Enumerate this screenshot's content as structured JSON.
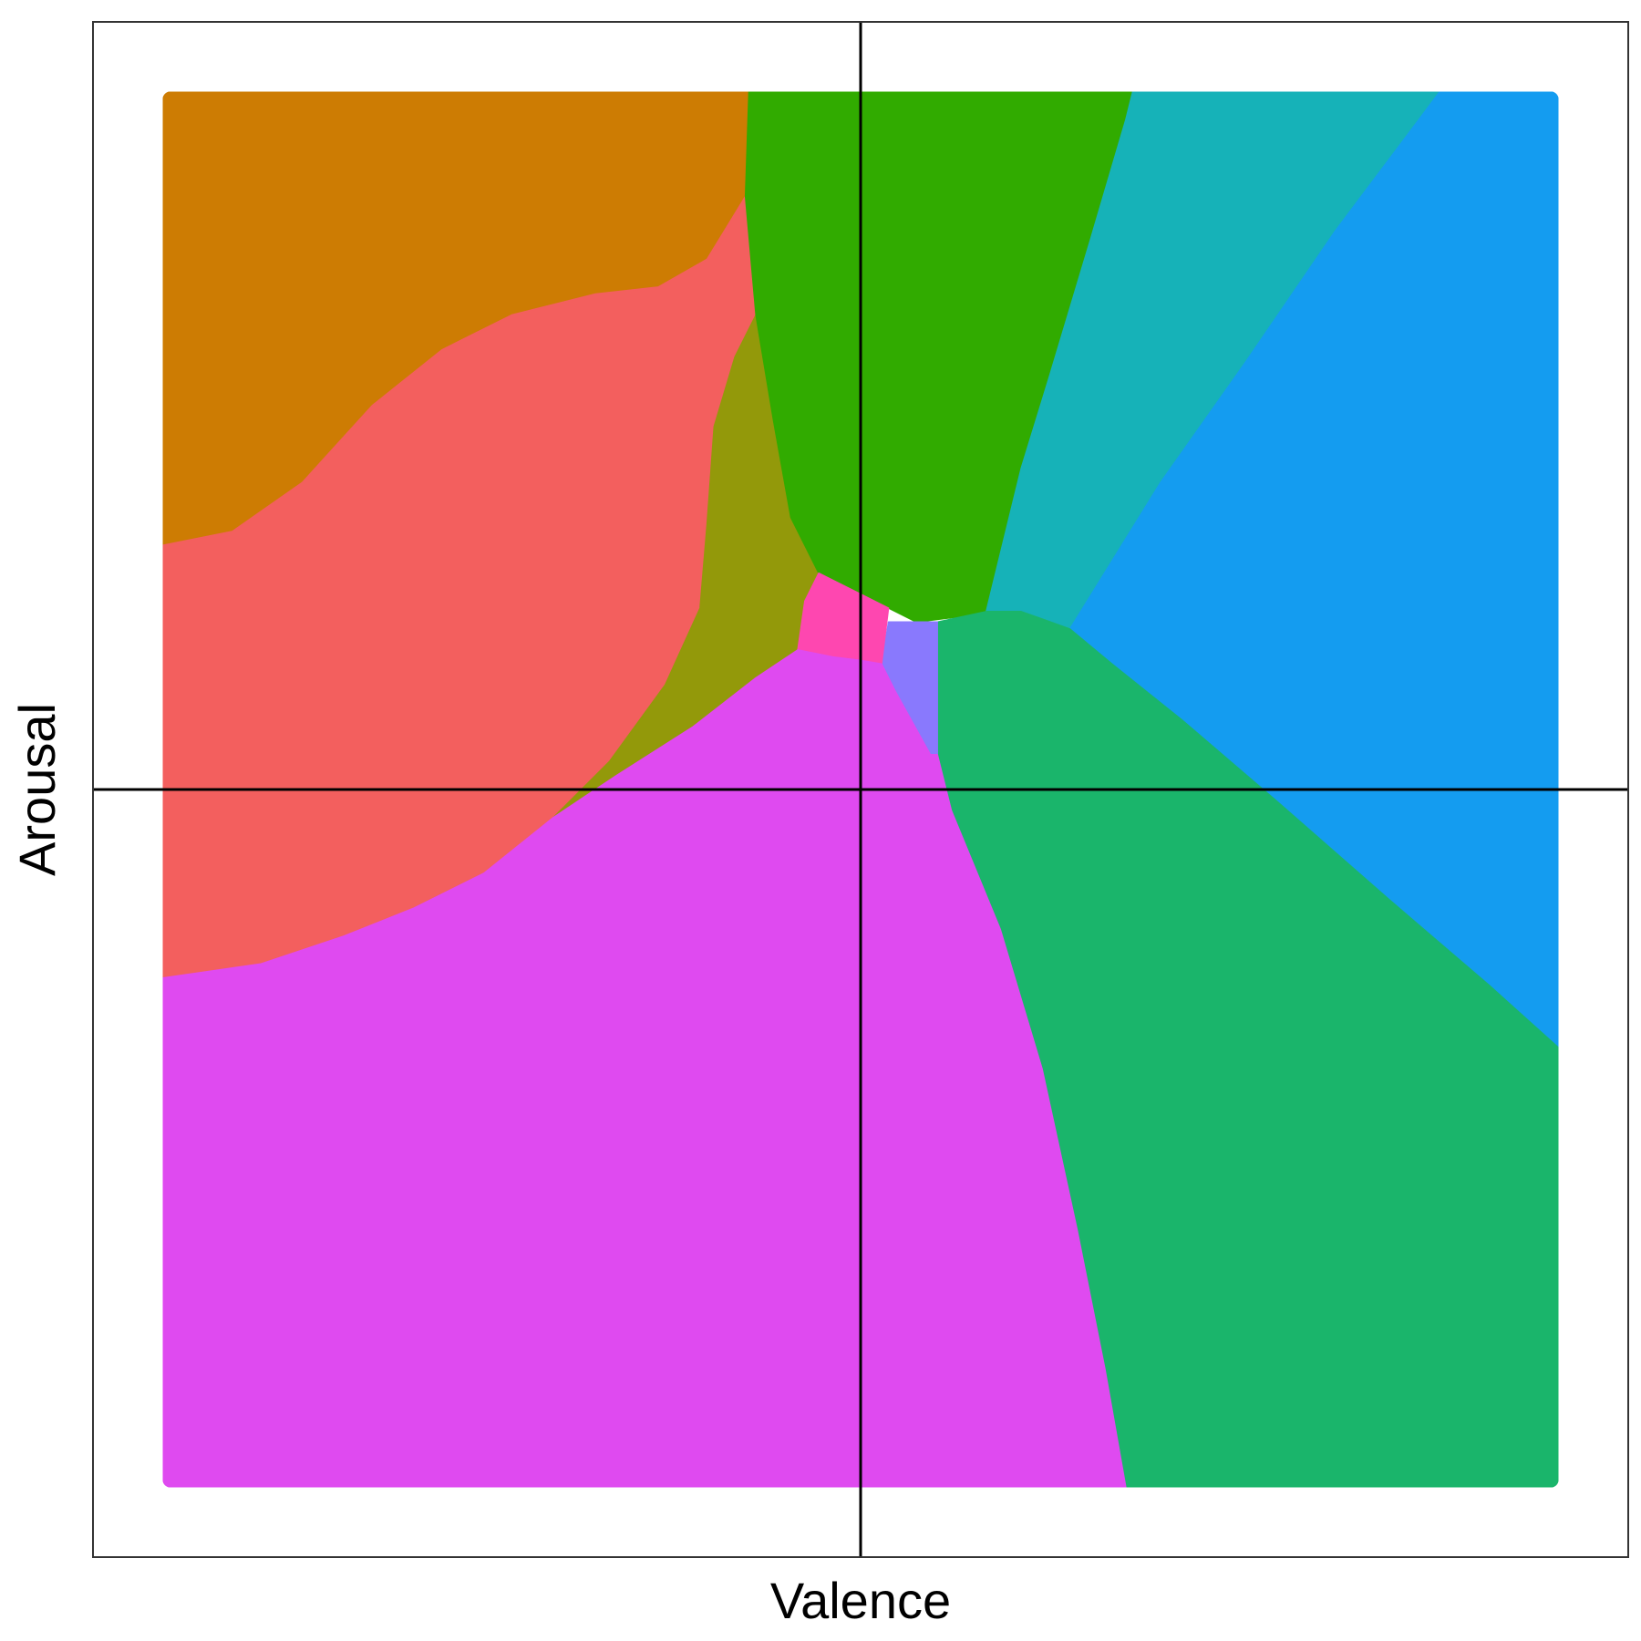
{
  "chart_data": {
    "type": "heatmap",
    "title": "",
    "xlabel": "Valence",
    "ylabel": "Arousal",
    "xlim": [
      -1.1,
      1.1
    ],
    "ylim": [
      -1.1,
      1.1
    ],
    "grid": false,
    "legend": "none",
    "reference_lines": {
      "x": 0,
      "y": 0,
      "color": "#000000"
    },
    "regions": [
      {
        "color": "#CD7C03",
        "polygon": [
          [
            -1,
            1
          ],
          [
            -0.16,
            1
          ],
          [
            -0.165,
            0.85
          ],
          [
            -0.22,
            0.76
          ],
          [
            -0.29,
            0.72
          ],
          [
            -0.38,
            0.71
          ],
          [
            -0.5,
            0.68
          ],
          [
            -0.6,
            0.63
          ],
          [
            -0.7,
            0.55
          ],
          [
            -0.8,
            0.44
          ],
          [
            -0.9,
            0.37
          ],
          [
            -1,
            0.35
          ]
        ]
      },
      {
        "color": "#F35F5E",
        "polygon": [
          [
            -1,
            0.35
          ],
          [
            -0.9,
            0.37
          ],
          [
            -0.8,
            0.44
          ],
          [
            -0.7,
            0.55
          ],
          [
            -0.6,
            0.63
          ],
          [
            -0.5,
            0.68
          ],
          [
            -0.38,
            0.71
          ],
          [
            -0.29,
            0.72
          ],
          [
            -0.22,
            0.76
          ],
          [
            -0.165,
            0.85
          ],
          [
            -0.15,
            0.68
          ],
          [
            -0.18,
            0.62
          ],
          [
            -0.21,
            0.52
          ],
          [
            -0.22,
            0.38
          ],
          [
            -0.23,
            0.26
          ],
          [
            -0.28,
            0.15
          ],
          [
            -0.36,
            0.04
          ],
          [
            -0.44,
            -0.04
          ],
          [
            -0.54,
            -0.12
          ],
          [
            -0.64,
            -0.17
          ],
          [
            -0.74,
            -0.21
          ],
          [
            -0.86,
            -0.25
          ],
          [
            -1,
            -0.27
          ]
        ]
      },
      {
        "color": "#93990A",
        "polygon": [
          [
            -0.15,
            0.68
          ],
          [
            -0.125,
            0.53
          ],
          [
            -0.1,
            0.39
          ],
          [
            -0.06,
            0.31
          ],
          [
            -0.09,
            0.2
          ],
          [
            -0.15,
            0.16
          ],
          [
            -0.24,
            0.09
          ],
          [
            -0.35,
            0.02
          ],
          [
            -0.44,
            -0.04
          ],
          [
            -0.36,
            0.04
          ],
          [
            -0.28,
            0.15
          ],
          [
            -0.23,
            0.26
          ],
          [
            -0.22,
            0.38
          ],
          [
            -0.21,
            0.52
          ],
          [
            -0.18,
            0.62
          ]
        ]
      },
      {
        "color": "#31AB00",
        "polygon": [
          [
            -0.16,
            1
          ],
          [
            0.39,
            1
          ],
          [
            0.38,
            0.96
          ],
          [
            0.33,
            0.79
          ],
          [
            0.27,
            0.59
          ],
          [
            0.23,
            0.46
          ],
          [
            0.18,
            0.255
          ],
          [
            0.16,
            0.25
          ],
          [
            0.12,
            0.245
          ],
          [
            0.08,
            0.24
          ],
          [
            0.04,
            0.26
          ],
          [
            0,
            0.28
          ],
          [
            -0.06,
            0.31
          ],
          [
            -0.1,
            0.39
          ],
          [
            -0.125,
            0.53
          ],
          [
            -0.15,
            0.68
          ],
          [
            -0.165,
            0.85
          ]
        ]
      },
      {
        "color": "#16B2B8",
        "polygon": [
          [
            0.39,
            1
          ],
          [
            0.83,
            1
          ],
          [
            0.8,
            0.96
          ],
          [
            0.68,
            0.8
          ],
          [
            0.55,
            0.61
          ],
          [
            0.43,
            0.44
          ],
          [
            0.3,
            0.23
          ],
          [
            0.23,
            0.255
          ],
          [
            0.18,
            0.255
          ],
          [
            0.23,
            0.46
          ],
          [
            0.27,
            0.59
          ],
          [
            0.33,
            0.79
          ],
          [
            0.38,
            0.96
          ]
        ]
      },
      {
        "color": "#149CF0",
        "polygon": [
          [
            0.83,
            1
          ],
          [
            1,
            1
          ],
          [
            1,
            -0.37
          ],
          [
            0.9,
            -0.28
          ],
          [
            0.76,
            -0.16
          ],
          [
            0.6,
            -0.02
          ],
          [
            0.46,
            0.1
          ],
          [
            0.36,
            0.18
          ],
          [
            0.3,
            0.23
          ],
          [
            0.43,
            0.44
          ],
          [
            0.55,
            0.61
          ],
          [
            0.68,
            0.8
          ],
          [
            0.8,
            0.96
          ]
        ]
      },
      {
        "color": "#1AB56B",
        "polygon": [
          [
            0.18,
            0.255
          ],
          [
            0.23,
            0.255
          ],
          [
            0.3,
            0.23
          ],
          [
            0.36,
            0.18
          ],
          [
            0.46,
            0.1
          ],
          [
            0.6,
            -0.02
          ],
          [
            0.76,
            -0.16
          ],
          [
            0.9,
            -0.28
          ],
          [
            1,
            -0.37
          ],
          [
            1,
            -1
          ],
          [
            0.38,
            -1
          ],
          [
            0.35,
            -0.83
          ],
          [
            0.31,
            -0.63
          ],
          [
            0.26,
            -0.4
          ],
          [
            0.2,
            -0.2
          ],
          [
            0.13,
            -0.03
          ],
          [
            0.11,
            0.05
          ],
          [
            0.11,
            0.24
          ]
        ]
      },
      {
        "color": "#8979FD",
        "polygon": [
          [
            0.04,
            0.24
          ],
          [
            0.11,
            0.24
          ],
          [
            0.11,
            0.05
          ],
          [
            0.1,
            0.05
          ],
          [
            0.05,
            0.14
          ],
          [
            0.03,
            0.18
          ]
        ]
      },
      {
        "color": "#FE47B0",
        "polygon": [
          [
            -0.06,
            0.31
          ],
          [
            0,
            0.28
          ],
          [
            0.04,
            0.26
          ],
          [
            0.03,
            0.18
          ],
          [
            0,
            0.185
          ],
          [
            -0.04,
            0.19
          ],
          [
            -0.09,
            0.2
          ],
          [
            -0.08,
            0.27
          ]
        ]
      },
      {
        "color": "#DF4AF0",
        "polygon": [
          [
            -1,
            -0.27
          ],
          [
            -0.86,
            -0.25
          ],
          [
            -0.74,
            -0.21
          ],
          [
            -0.64,
            -0.17
          ],
          [
            -0.54,
            -0.12
          ],
          [
            -0.44,
            -0.04
          ],
          [
            -0.35,
            0.02
          ],
          [
            -0.24,
            0.09
          ],
          [
            -0.15,
            0.16
          ],
          [
            -0.09,
            0.2
          ],
          [
            -0.04,
            0.19
          ],
          [
            0,
            0.185
          ],
          [
            0.03,
            0.18
          ],
          [
            0.05,
            0.14
          ],
          [
            0.1,
            0.05
          ],
          [
            0.11,
            0.05
          ],
          [
            0.13,
            -0.03
          ],
          [
            0.2,
            -0.2
          ],
          [
            0.26,
            -0.4
          ],
          [
            0.31,
            -0.63
          ],
          [
            0.35,
            -0.83
          ],
          [
            0.38,
            -1
          ],
          [
            -1,
            -1
          ]
        ]
      }
    ]
  }
}
